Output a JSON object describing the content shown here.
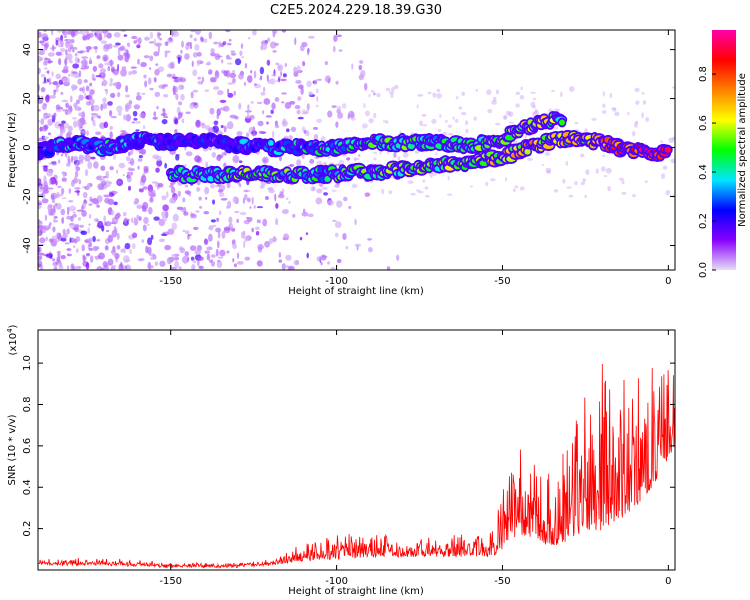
{
  "title": "C2E5.2024.229.18.39.G30",
  "chart_data": [
    {
      "type": "heatmap",
      "xlabel": "Height of straight line (km)",
      "ylabel": "Frequency (Hz)",
      "xlim": [
        -190,
        2
      ],
      "ylim": [
        -50,
        48
      ],
      "xticks": [
        -150,
        -100,
        -50,
        0
      ],
      "yticks": [
        -40,
        -20,
        0,
        20,
        40
      ],
      "colorbar": {
        "label": "Normalized spectral amplitude",
        "range": [
          0,
          0.98
        ],
        "ticks": [
          0.0,
          0.2,
          0.4,
          0.6,
          0.8
        ],
        "colormap": [
          "#e6dcf5",
          "#8800ff",
          "#0000ff",
          "#00e6ff",
          "#00ff00",
          "#ffff00",
          "#ff8000",
          "#ff0000",
          "#ff00aa"
        ]
      },
      "upper_track": [
        {
          "x": -190,
          "y": -2,
          "a": 0.25
        },
        {
          "x": -180,
          "y": 2,
          "a": 0.3
        },
        {
          "x": -170,
          "y": 0,
          "a": 0.35
        },
        {
          "x": -160,
          "y": 3,
          "a": 0.3
        },
        {
          "x": -150,
          "y": 2,
          "a": 0.25
        },
        {
          "x": -140,
          "y": 3,
          "a": 0.2
        },
        {
          "x": -130,
          "y": 1,
          "a": 0.25
        },
        {
          "x": -120,
          "y": 0,
          "a": 0.3
        },
        {
          "x": -110,
          "y": 0,
          "a": 0.35
        },
        {
          "x": -100,
          "y": 0,
          "a": 0.4
        },
        {
          "x": -90,
          "y": 2,
          "a": 0.45
        },
        {
          "x": -80,
          "y": 2,
          "a": 0.45
        },
        {
          "x": -70,
          "y": 2,
          "a": 0.4
        },
        {
          "x": -60,
          "y": 1,
          "a": 0.45
        },
        {
          "x": -50,
          "y": 3,
          "a": 0.5
        },
        {
          "x": -45,
          "y": 7,
          "a": 0.55
        },
        {
          "x": -38,
          "y": 10,
          "a": 0.6
        },
        {
          "x": -32,
          "y": 12,
          "a": 0.5
        }
      ],
      "lower_track": [
        {
          "x": -150,
          "y": -11,
          "a": 0.45
        },
        {
          "x": -140,
          "y": -11,
          "a": 0.4
        },
        {
          "x": -125,
          "y": -11,
          "a": 0.5
        },
        {
          "x": -115,
          "y": -11,
          "a": 0.45
        },
        {
          "x": -105,
          "y": -11,
          "a": 0.4
        },
        {
          "x": -90,
          "y": -10,
          "a": 0.45
        },
        {
          "x": -80,
          "y": -9,
          "a": 0.5
        },
        {
          "x": -70,
          "y": -7,
          "a": 0.5
        },
        {
          "x": -60,
          "y": -6,
          "a": 0.55
        },
        {
          "x": -50,
          "y": -4,
          "a": 0.6
        },
        {
          "x": -42,
          "y": 0,
          "a": 0.65
        },
        {
          "x": -35,
          "y": 3,
          "a": 0.6
        },
        {
          "x": -30,
          "y": 4,
          "a": 0.6
        },
        {
          "x": -25,
          "y": 3,
          "a": 0.65
        },
        {
          "x": -20,
          "y": 2,
          "a": 0.7
        },
        {
          "x": -15,
          "y": 0,
          "a": 0.8
        },
        {
          "x": -10,
          "y": -1,
          "a": 0.85
        },
        {
          "x": -5,
          "y": -2,
          "a": 0.9
        },
        {
          "x": 0,
          "y": -2,
          "a": 0.95
        }
      ]
    },
    {
      "type": "line",
      "xlabel": "Height of straight line (km)",
      "ylabel": "SNR (10 * v/v)",
      "scale_label": "(x10",
      "scale_exponent": "4",
      "xlim": [
        -190,
        2
      ],
      "ylim": [
        0,
        1.16
      ],
      "xticks": [
        -150,
        -100,
        -50,
        0
      ],
      "yticks": [
        0.2,
        0.4,
        0.6,
        0.8,
        1.0
      ],
      "color": "#ff0000",
      "envelope": {
        "x": [
          -190,
          -170,
          -150,
          -130,
          -120,
          -110,
          -100,
          -90,
          -80,
          -70,
          -60,
          -52,
          -48,
          -45,
          -40,
          -35,
          -30,
          -25,
          -20,
          -15,
          -10,
          -5,
          0,
          2
        ],
        "base": [
          0.03,
          0.03,
          0.02,
          0.02,
          0.03,
          0.05,
          0.06,
          0.07,
          0.07,
          0.07,
          0.07,
          0.07,
          0.15,
          0.18,
          0.15,
          0.12,
          0.15,
          0.2,
          0.2,
          0.25,
          0.3,
          0.4,
          0.55,
          0.6
        ],
        "amp": [
          0.03,
          0.03,
          0.02,
          0.02,
          0.03,
          0.08,
          0.12,
          0.11,
          0.1,
          0.1,
          0.12,
          0.15,
          0.55,
          0.5,
          0.35,
          0.35,
          0.6,
          0.7,
          0.95,
          0.7,
          0.7,
          0.6,
          0.45,
          0.35
        ]
      }
    }
  ]
}
